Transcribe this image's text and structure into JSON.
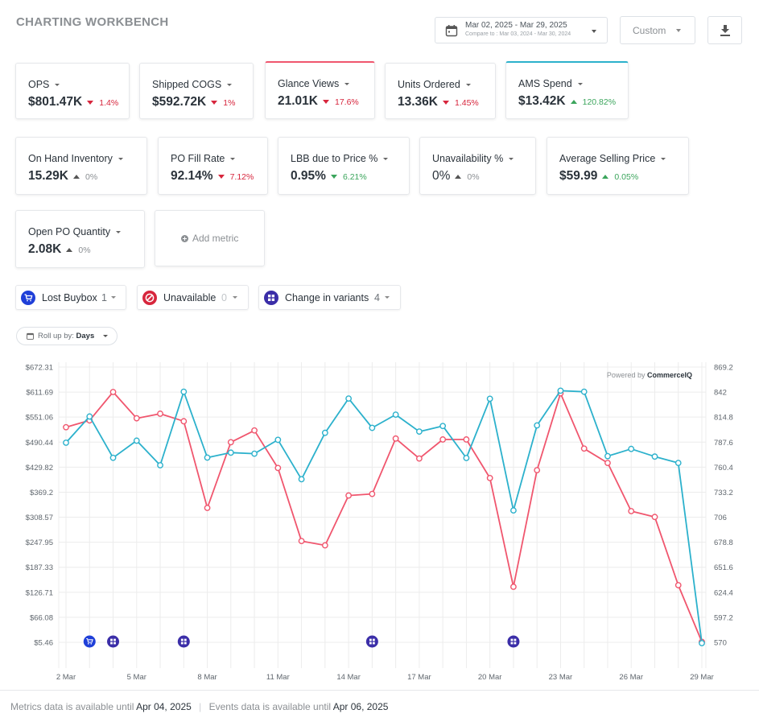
{
  "header": {
    "title": "CHARTING WORKBENCH",
    "date_range": "Mar 02, 2025 - Mar 29, 2025",
    "compare_to": "Compare to : Mar 03, 2024 - Mar 30, 2024",
    "range_type": "Custom"
  },
  "metrics": [
    {
      "label": "OPS",
      "value": "$801.47K",
      "change": "1.4%",
      "direction": "down",
      "accent": ""
    },
    {
      "label": "Shipped COGS",
      "value": "$592.72K",
      "change": "1%",
      "direction": "down",
      "accent": ""
    },
    {
      "label": "Glance Views",
      "value": "21.01K",
      "change": "17.6%",
      "direction": "down",
      "accent": "#f0566e"
    },
    {
      "label": "Units Ordered",
      "value": "13.36K",
      "change": "1.45%",
      "direction": "down",
      "accent": ""
    },
    {
      "label": "AMS Spend",
      "value": "$13.42K",
      "change": "120.82%",
      "direction": "up",
      "accent": "#2cb1cc"
    },
    {
      "label": "On Hand Inventory",
      "value": "15.29K",
      "change": "0%",
      "direction": "flat-up",
      "accent": ""
    },
    {
      "label": "PO Fill Rate",
      "value": "92.14%",
      "change": "7.12%",
      "direction": "down",
      "accent": ""
    },
    {
      "label": "LBB due to Price %",
      "value": "0.95%",
      "change": "6.21%",
      "direction": "down-green",
      "accent": ""
    },
    {
      "label": "Unavailability %",
      "value": "0%",
      "change": "0%",
      "direction": "flat-up-dark",
      "accent": ""
    },
    {
      "label": "Average Selling Price",
      "value": "$59.99",
      "change": "0.05%",
      "direction": "up",
      "accent": ""
    },
    {
      "label": "Open PO Quantity",
      "value": "2.08K",
      "change": "0%",
      "direction": "flat-up",
      "accent": ""
    }
  ],
  "add_metric_label": "Add metric",
  "events": [
    {
      "label": "Lost Buybox",
      "count": "1",
      "icon": "cart-icon",
      "color": "#1f3fd8"
    },
    {
      "label": "Unavailable",
      "count": "0",
      "icon": "prohibited-icon",
      "color": "#d7263d"
    },
    {
      "label": "Change in variants",
      "count": "4",
      "icon": "variants-icon",
      "color": "#3b2ea8"
    }
  ],
  "rollup": {
    "prefix": "Roll up by:",
    "value": "Days"
  },
  "chart_data": {
    "type": "line",
    "powered_by_prefix": "Powered by",
    "powered_by_brand": "CommerceIQ",
    "x": [
      "2 Mar",
      "3 Mar",
      "4 Mar",
      "5 Mar",
      "6 Mar",
      "7 Mar",
      "8 Mar",
      "9 Mar",
      "10 Mar",
      "11 Mar",
      "12 Mar",
      "13 Mar",
      "14 Mar",
      "15 Mar",
      "16 Mar",
      "17 Mar",
      "18 Mar",
      "19 Mar",
      "20 Mar",
      "21 Mar",
      "22 Mar",
      "23 Mar",
      "24 Mar",
      "25 Mar",
      "26 Mar",
      "27 Mar",
      "28 Mar",
      "29 Mar"
    ],
    "x_tick_labels": [
      "2 Mar",
      "5 Mar",
      "8 Mar",
      "11 Mar",
      "14 Mar",
      "17 Mar",
      "20 Mar",
      "23 Mar",
      "26 Mar",
      "29 Mar"
    ],
    "y_left_ticks": [
      "$672.31",
      "$611.69",
      "$551.06",
      "$490.44",
      "$429.82",
      "$369.2",
      "$308.57",
      "$247.95",
      "$187.33",
      "$126.71",
      "$66.08",
      "$5.46"
    ],
    "y_right_ticks": [
      "869.2",
      "842",
      "814.8",
      "787.6",
      "760.4",
      "733.2",
      "706",
      "678.8",
      "651.6",
      "624.4",
      "597.2",
      "570"
    ],
    "ylim_left": [
      5.46,
      672.31
    ],
    "ylim_right": [
      570,
      869.2
    ],
    "grid": true,
    "series": [
      {
        "name": "Glance Views",
        "axis": "right",
        "color": "#f0566e",
        "values": [
          803.8,
          811.2,
          842.1,
          813.5,
          818.5,
          810.3,
          716.1,
          787.5,
          800.3,
          759.5,
          680.1,
          675.4,
          729.6,
          731.3,
          791.5,
          769.8,
          790.5,
          790.5,
          748.6,
          630.4,
          757.1,
          840.7,
          780.6,
          765.0,
          712.6,
          706.3,
          632.1,
          570.5
        ]
      },
      {
        "name": "AMS Spend",
        "axis": "left",
        "color": "#2cb1cc",
        "values": [
          489.0,
          552.5,
          452.5,
          494.0,
          434.5,
          612.5,
          453.0,
          465.0,
          462.5,
          496.0,
          400.5,
          513.0,
          596.0,
          525.0,
          557.0,
          516.0,
          529.5,
          452.0,
          595.5,
          325.0,
          531.0,
          615.0,
          612.5,
          456.5,
          474.0,
          455.5,
          440.0,
          3.5
        ]
      }
    ],
    "events": [
      {
        "date": "3 Mar",
        "type": "Lost Buybox",
        "color": "#1f3fd8"
      },
      {
        "date": "4 Mar",
        "type": "Change in variants",
        "color": "#3b2ea8"
      },
      {
        "date": "7 Mar",
        "type": "Change in variants",
        "color": "#3b2ea8"
      },
      {
        "date": "15 Mar",
        "type": "Change in variants",
        "color": "#3b2ea8"
      },
      {
        "date": "21 Mar",
        "type": "Change in variants",
        "color": "#3b2ea8"
      }
    ]
  },
  "footer": {
    "metrics_prefix": "Metrics data is available until",
    "metrics_date": "Apr 04, 2025",
    "events_prefix": "Events data is available until",
    "events_date": "Apr 06, 2025"
  }
}
